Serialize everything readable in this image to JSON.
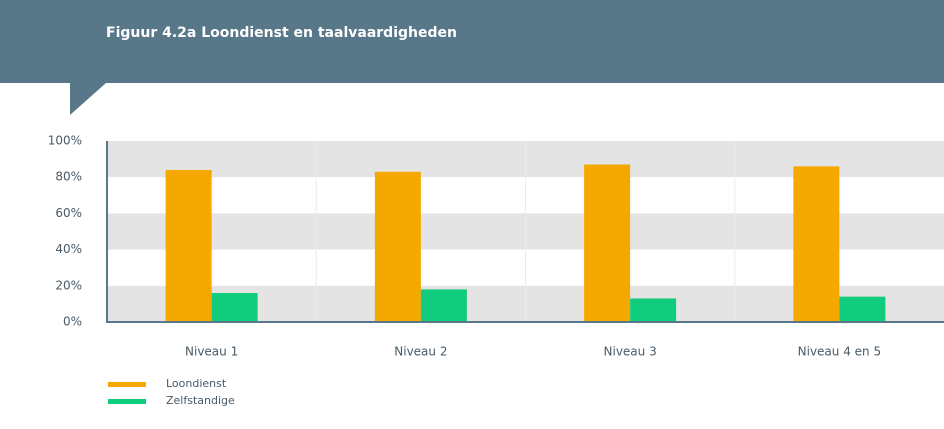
{
  "chart_data": {
    "type": "bar",
    "title": "Figuur 4.2a Loondienst en taalvaardigheden",
    "categories": [
      "Niveau 1",
      "Niveau 2",
      "Niveau 3",
      "Niveau 4 en 5"
    ],
    "series": [
      {
        "name": "Loondienst",
        "color": "#f5a800",
        "values": [
          84,
          83,
          87,
          86
        ]
      },
      {
        "name": "Zelfstandige",
        "color": "#10cc7c",
        "values": [
          16,
          18,
          13,
          14
        ]
      }
    ],
    "ylim": [
      0,
      100
    ],
    "yticks": [
      {
        "value": 0,
        "label": "0%"
      },
      {
        "value": 20,
        "label": "20%"
      },
      {
        "value": 40,
        "label": "40%"
      },
      {
        "value": 60,
        "label": "60%"
      },
      {
        "value": 80,
        "label": "80%"
      },
      {
        "value": 100,
        "label": "100%"
      }
    ],
    "grid": true
  }
}
